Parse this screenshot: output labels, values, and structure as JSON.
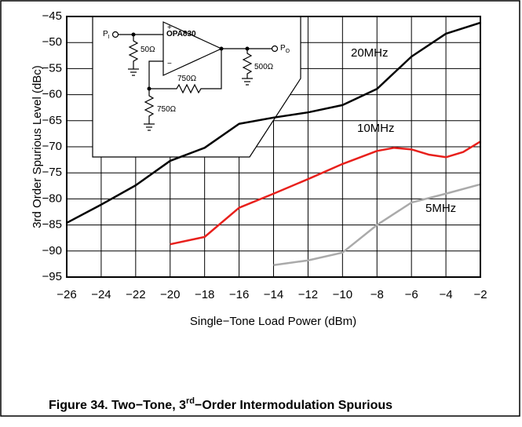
{
  "chart_data": {
    "type": "line",
    "xlabel": "Single−Tone Load Power (dBm)",
    "ylabel": "3rd  Order Spurious Level (dBc)",
    "xlim": [
      -26,
      -2
    ],
    "xticks": [
      {
        "value": -26,
        "label": "−26"
      },
      {
        "value": -24,
        "label": "−24"
      },
      {
        "value": -22,
        "label": "−22"
      },
      {
        "value": -20,
        "label": "−20"
      },
      {
        "value": -18,
        "label": "−18"
      },
      {
        "value": -16,
        "label": "−16"
      },
      {
        "value": -14,
        "label": "−14"
      },
      {
        "value": -12,
        "label": "−12"
      },
      {
        "value": -10,
        "label": "−10"
      },
      {
        "value": -8,
        "label": "−8"
      },
      {
        "value": -6,
        "label": "−6"
      },
      {
        "value": -4,
        "label": "−4"
      },
      {
        "value": -2,
        "label": "−2"
      }
    ],
    "ylim": [
      -95,
      -45
    ],
    "yticks": [
      {
        "value": -95,
        "label": "−95"
      },
      {
        "value": -90,
        "label": "−90"
      },
      {
        "value": -85,
        "label": "−85"
      },
      {
        "value": -80,
        "label": "−80"
      },
      {
        "value": -75,
        "label": "−75"
      },
      {
        "value": -70,
        "label": "−70"
      },
      {
        "value": -65,
        "label": "−65"
      },
      {
        "value": -60,
        "label": "−60"
      },
      {
        "value": -55,
        "label": "−55"
      },
      {
        "value": -50,
        "label": "−50"
      },
      {
        "value": -45,
        "label": "−45"
      }
    ],
    "grid": true,
    "series": [
      {
        "name": "20MHz",
        "color": "#000000",
        "x": [
          -26,
          -24,
          -22,
          -20,
          -18,
          -16,
          -14,
          -12,
          -10,
          -8,
          -6,
          -4,
          -2
        ],
        "values": [
          -84.6,
          -81.1,
          -77.4,
          -72.7,
          -70.2,
          -65.6,
          -64.4,
          -63.4,
          -62,
          -58.9,
          -52.7,
          -48.3,
          -46.2
        ]
      },
      {
        "name": "10MHz",
        "color": "#e8201c",
        "x": [
          -20,
          -18,
          -16,
          -14,
          -12,
          -10,
          -8,
          -7,
          -6,
          -5,
          -4,
          -3,
          -2
        ],
        "values": [
          -88.7,
          -87.3,
          -81.7,
          -79,
          -76.2,
          -73.3,
          -70.8,
          -70.2,
          -70.5,
          -71.5,
          -72,
          -71,
          -69
        ]
      },
      {
        "name": "5MHz",
        "color": "#aaaaaa",
        "x": [
          -14,
          -12,
          -10,
          -8,
          -6,
          -4,
          -2
        ],
        "values": [
          -92.7,
          -91.8,
          -90.3,
          -85,
          -80.7,
          -79,
          -77.2
        ]
      }
    ],
    "inset": {
      "input": "P",
      "input_sub": "I",
      "amp": "OPA830",
      "plus": "+",
      "minus": "−",
      "r_in": "50Ω",
      "r_f": "750Ω",
      "r_g": "750Ω",
      "r_load": "500Ω",
      "output": "P",
      "output_sub": "O"
    }
  },
  "caption": {
    "pre": "Figure 34. Two−Tone, 3",
    "sup": "rd",
    "post": "−Order Intermodulation Spurious"
  }
}
